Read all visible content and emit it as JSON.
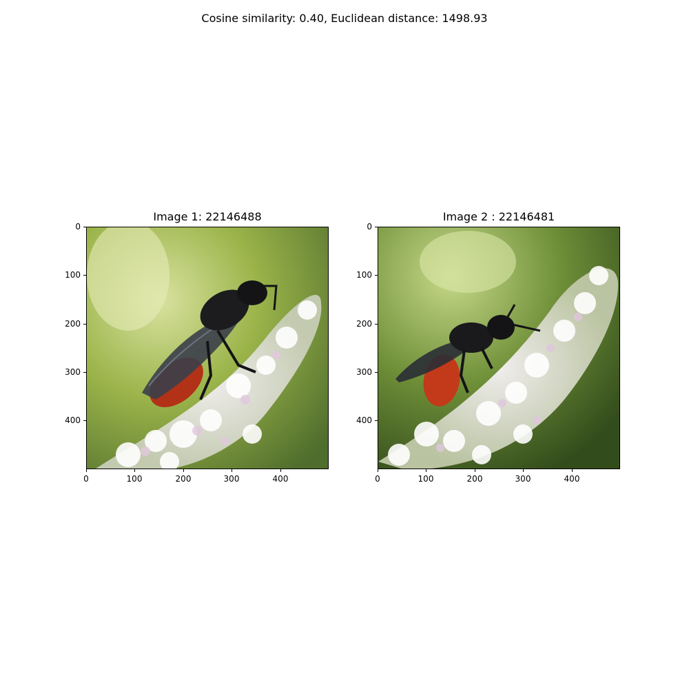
{
  "suptitle": "Cosine similarity: 0.40, Euclidean distance: 1498.93",
  "panels": [
    {
      "title": "Image 1: 22146488",
      "subject": "black-winged-bee-with-red-abdomen-on-white-flower-spike",
      "xticks": [
        "0",
        "100",
        "200",
        "300",
        "400"
      ],
      "yticks": [
        "0",
        "100",
        "200",
        "300",
        "400"
      ]
    },
    {
      "title": "Image 2 : 22146481",
      "subject": "black-winged-bee-with-red-abdomen-on-white-flower-spike",
      "xticks": [
        "0",
        "100",
        "200",
        "300",
        "400"
      ],
      "yticks": [
        "0",
        "100",
        "200",
        "300",
        "400"
      ]
    }
  ]
}
